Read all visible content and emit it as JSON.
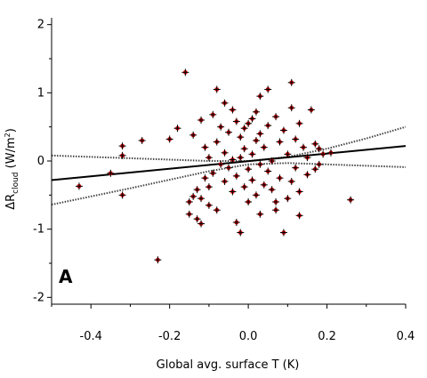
{
  "chart_data": {
    "type": "scatter",
    "title": "",
    "panel_label": "A",
    "xlabel": "Global avg. surface T (K)",
    "ylabel": {
      "base": "ΔR",
      "subscript": "cloud",
      "unit_open": " (W/m",
      "unit_sup": "2",
      "unit_close": ")"
    },
    "xlim": [
      -0.5,
      0.4
    ],
    "ylim": [
      -2.1,
      2.1
    ],
    "x_ticks": [
      -0.4,
      -0.2,
      0.0,
      0.2,
      0.4
    ],
    "x_tick_labels": [
      "-0.4",
      "-0.2",
      "0.0",
      "0.2",
      "0.4"
    ],
    "y_ticks": [
      -2,
      -1,
      0,
      1,
      2
    ],
    "y_tick_labels": [
      "-2",
      "-1",
      "0",
      "1",
      "2"
    ],
    "grid": false,
    "marker_color": "#d40000",
    "marker_edge_color": "#000000",
    "line_color": "#000000",
    "fit_line": {
      "x": [
        -0.5,
        0.4
      ],
      "y": [
        -0.28,
        0.22
      ]
    },
    "confidence_band": {
      "upper": {
        "x": [
          -0.5,
          -0.3,
          -0.1,
          0.0,
          0.1,
          0.2,
          0.3,
          0.4
        ],
        "y": [
          0.08,
          0.04,
          0.0,
          0.0,
          0.06,
          0.18,
          0.33,
          0.5
        ]
      },
      "lower": {
        "x": [
          -0.5,
          -0.3,
          -0.1,
          0.0,
          0.1,
          0.2,
          0.3,
          0.4
        ],
        "y": [
          -0.64,
          -0.4,
          -0.15,
          -0.05,
          -0.03,
          -0.05,
          -0.07,
          -0.09
        ]
      }
    },
    "points": [
      {
        "x": -0.43,
        "y": -0.37
      },
      {
        "x": -0.35,
        "y": -0.18
      },
      {
        "x": -0.32,
        "y": 0.22
      },
      {
        "x": -0.32,
        "y": 0.08
      },
      {
        "x": -0.32,
        "y": -0.5
      },
      {
        "x": -0.27,
        "y": 0.3
      },
      {
        "x": -0.23,
        "y": -1.45
      },
      {
        "x": -0.2,
        "y": 0.32
      },
      {
        "x": -0.16,
        "y": 1.3
      },
      {
        "x": -0.15,
        "y": -0.6
      },
      {
        "x": -0.14,
        "y": -0.52
      },
      {
        "x": -0.13,
        "y": -0.42
      },
      {
        "x": -0.13,
        "y": -0.85
      },
      {
        "x": -0.12,
        "y": -0.92
      },
      {
        "x": -0.12,
        "y": -0.55
      },
      {
        "x": -0.12,
        "y": 0.6
      },
      {
        "x": -0.11,
        "y": -0.25
      },
      {
        "x": -0.11,
        "y": 0.2
      },
      {
        "x": -0.1,
        "y": 0.05
      },
      {
        "x": -0.1,
        "y": -0.38
      },
      {
        "x": -0.09,
        "y": 0.68
      },
      {
        "x": -0.09,
        "y": -0.18
      },
      {
        "x": -0.08,
        "y": 1.05
      },
      {
        "x": -0.08,
        "y": -0.72
      },
      {
        "x": -0.08,
        "y": 0.28
      },
      {
        "x": -0.07,
        "y": -0.05
      },
      {
        "x": -0.07,
        "y": 0.5
      },
      {
        "x": -0.06,
        "y": 0.12
      },
      {
        "x": -0.06,
        "y": -0.3
      },
      {
        "x": -0.05,
        "y": 0.42
      },
      {
        "x": -0.05,
        "y": -0.1
      },
      {
        "x": -0.04,
        "y": 0.75
      },
      {
        "x": -0.04,
        "y": -0.45
      },
      {
        "x": -0.04,
        "y": 0.02
      },
      {
        "x": -0.03,
        "y": -0.9
      },
      {
        "x": -0.03,
        "y": 0.58
      },
      {
        "x": -0.03,
        "y": -0.22
      },
      {
        "x": -0.02,
        "y": 0.35
      },
      {
        "x": -0.02,
        "y": -1.05
      },
      {
        "x": -0.02,
        "y": 0.05
      },
      {
        "x": -0.01,
        "y": 0.48
      },
      {
        "x": -0.01,
        "y": -0.38
      },
      {
        "x": -0.01,
        "y": 0.18
      },
      {
        "x": 0.0,
        "y": 0.55
      },
      {
        "x": 0.0,
        "y": -0.12
      },
      {
        "x": 0.0,
        "y": -0.6
      },
      {
        "x": 0.01,
        "y": 0.62
      },
      {
        "x": 0.01,
        "y": 0.1
      },
      {
        "x": 0.01,
        "y": -0.28
      },
      {
        "x": 0.02,
        "y": 0.3
      },
      {
        "x": 0.02,
        "y": -0.5
      },
      {
        "x": 0.02,
        "y": 0.72
      },
      {
        "x": 0.03,
        "y": -0.05
      },
      {
        "x": 0.03,
        "y": 0.4
      },
      {
        "x": 0.03,
        "y": -0.78
      },
      {
        "x": 0.04,
        "y": 0.2
      },
      {
        "x": 0.04,
        "y": -0.35
      },
      {
        "x": 0.05,
        "y": 1.05
      },
      {
        "x": 0.05,
        "y": 0.52
      },
      {
        "x": 0.05,
        "y": -0.15
      },
      {
        "x": 0.06,
        "y": -0.42
      },
      {
        "x": 0.06,
        "y": 0.0
      },
      {
        "x": 0.07,
        "y": 0.65
      },
      {
        "x": 0.07,
        "y": -0.72
      },
      {
        "x": 0.08,
        "y": 0.28
      },
      {
        "x": 0.08,
        "y": -0.25
      },
      {
        "x": 0.09,
        "y": -1.05
      },
      {
        "x": 0.09,
        "y": 0.45
      },
      {
        "x": 0.1,
        "y": 0.1
      },
      {
        "x": 0.1,
        "y": -0.55
      },
      {
        "x": 0.11,
        "y": 1.15
      },
      {
        "x": 0.11,
        "y": 0.78
      },
      {
        "x": 0.11,
        "y": -0.3
      },
      {
        "x": 0.12,
        "y": 0.32
      },
      {
        "x": 0.12,
        "y": -0.1
      },
      {
        "x": 0.13,
        "y": 0.55
      },
      {
        "x": 0.13,
        "y": -0.45
      },
      {
        "x": 0.14,
        "y": 0.2
      },
      {
        "x": 0.15,
        "y": -0.2
      },
      {
        "x": 0.15,
        "y": 0.05
      },
      {
        "x": 0.16,
        "y": 0.75
      },
      {
        "x": 0.17,
        "y": 0.25
      },
      {
        "x": 0.17,
        "y": -0.12
      },
      {
        "x": 0.18,
        "y": 0.18
      },
      {
        "x": 0.18,
        "y": -0.05
      },
      {
        "x": 0.19,
        "y": 0.1
      },
      {
        "x": 0.21,
        "y": 0.12
      },
      {
        "x": 0.26,
        "y": -0.57
      },
      {
        "x": -0.18,
        "y": 0.48
      },
      {
        "x": -0.14,
        "y": 0.38
      },
      {
        "x": -0.1,
        "y": -0.65
      },
      {
        "x": -0.06,
        "y": 0.85
      },
      {
        "x": 0.03,
        "y": 0.95
      },
      {
        "x": 0.07,
        "y": -0.6
      },
      {
        "x": -0.15,
        "y": -0.78
      },
      {
        "x": 0.13,
        "y": -0.8
      }
    ]
  }
}
